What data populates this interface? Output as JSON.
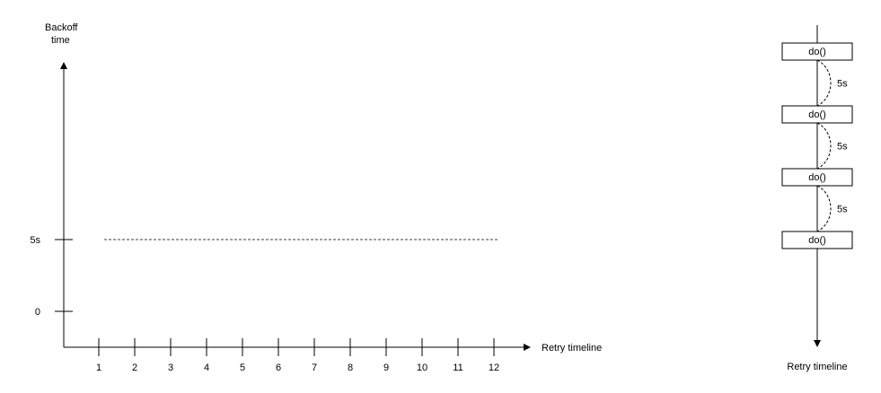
{
  "left_chart": {
    "y_axis_title": [
      "Backoff",
      "time"
    ],
    "x_axis_title": "Retry timeline",
    "y_ticks": [
      "0",
      "5s"
    ],
    "x_ticks": [
      "1",
      "2",
      "3",
      "4",
      "5",
      "6",
      "7",
      "8",
      "9",
      "10",
      "11",
      "12"
    ],
    "constant_backoff_line_style": "dashed",
    "line_color": "#666666"
  },
  "right_timeline": {
    "calls": [
      "do()",
      "do()",
      "do()",
      "do()"
    ],
    "intervals": [
      "5s",
      "5s",
      "5s"
    ],
    "axis_title": "Retry timeline"
  }
}
